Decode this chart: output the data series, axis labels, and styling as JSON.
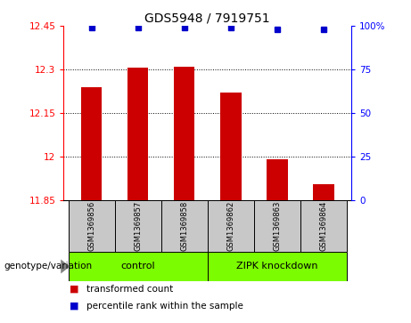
{
  "title": "GDS5948 / 7919751",
  "samples": [
    "GSM1369856",
    "GSM1369857",
    "GSM1369858",
    "GSM1369862",
    "GSM1369863",
    "GSM1369864"
  ],
  "bar_values": [
    12.24,
    12.305,
    12.31,
    12.22,
    11.99,
    11.905
  ],
  "percentile_values": [
    99,
    99,
    99,
    99,
    98,
    98
  ],
  "bar_color": "#cc0000",
  "dot_color": "#0000cc",
  "ylim_left": [
    11.85,
    12.45
  ],
  "ylim_right": [
    0,
    100
  ],
  "yticks_left": [
    11.85,
    12.0,
    12.15,
    12.3,
    12.45
  ],
  "yticks_right": [
    0,
    25,
    50,
    75,
    100
  ],
  "ytick_labels_left": [
    "11.85",
    "12",
    "12.15",
    "12.3",
    "12.45"
  ],
  "ytick_labels_right": [
    "0",
    "25",
    "50",
    "75",
    "100%"
  ],
  "hlines": [
    12.0,
    12.15,
    12.3
  ],
  "groups": [
    {
      "label": "control",
      "start": 0,
      "end": 3,
      "color": "#7cfc00"
    },
    {
      "label": "ZIPK knockdown",
      "start": 3,
      "end": 6,
      "color": "#7cfc00"
    }
  ],
  "group_label": "genotype/variation",
  "legend_items": [
    {
      "color": "#cc0000",
      "label": "transformed count"
    },
    {
      "color": "#0000cc",
      "label": "percentile rank within the sample"
    }
  ],
  "bar_width": 0.45,
  "background_color": "#ffffff",
  "cell_bg": "#c8c8c8"
}
